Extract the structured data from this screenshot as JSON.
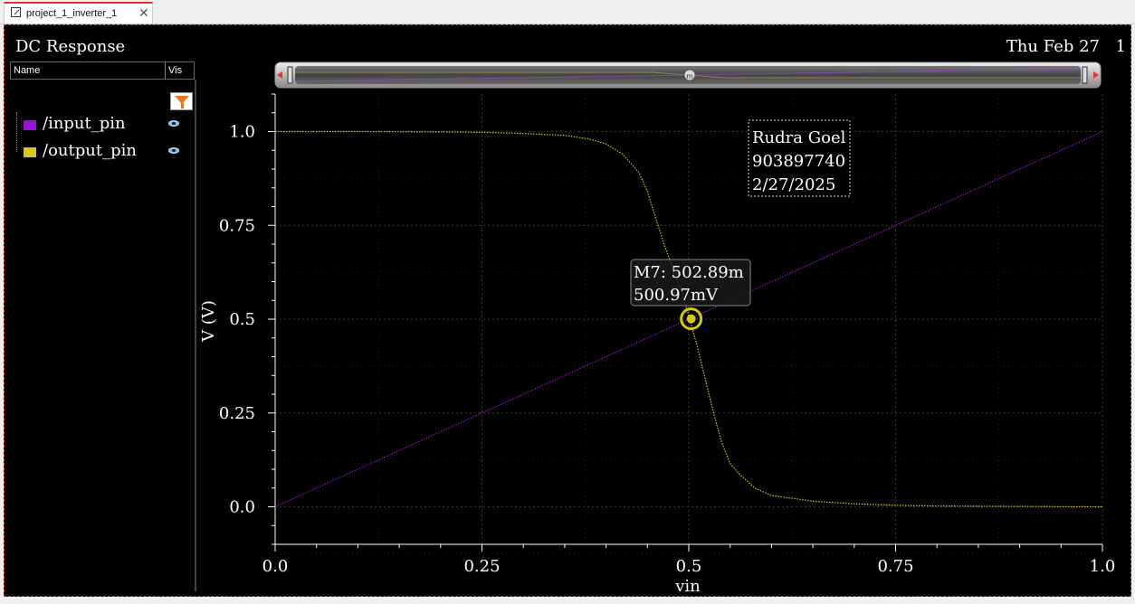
{
  "tab": {
    "title": "project_1_inverter_1",
    "close": "✕"
  },
  "panel": {
    "title": "DC Response",
    "date": "Thu Feb 27",
    "date_extra": "1"
  },
  "legend": {
    "col_name": "Name",
    "col_vis": "Vis",
    "items": [
      {
        "label": "/input_pin",
        "color": "#9b10d8"
      },
      {
        "label": "/output_pin",
        "color": "#d6c81c"
      }
    ]
  },
  "annotation": {
    "lines": [
      "Rudra Goel",
      "903897740",
      "2/27/2025"
    ]
  },
  "marker": {
    "line1": "M7: 502.89m",
    "line2": "500.97mV",
    "x": 0.50289,
    "y": 0.50097
  },
  "chart_data": {
    "type": "line",
    "xlabel": "vin",
    "ylabel": "V (V)",
    "xlim": [
      0.0,
      1.0
    ],
    "ylim": [
      -0.1,
      1.1
    ],
    "xticks": [
      "0.0",
      "0.25",
      "0.5",
      "0.75",
      "1.0"
    ],
    "yticks": [
      "0.0",
      "0.25",
      "0.5",
      "0.75",
      "1.0"
    ],
    "grid": true,
    "series": [
      {
        "name": "/input_pin",
        "color": "#9b10d8",
        "x": [
          0.0,
          1.0
        ],
        "y": [
          0.0,
          1.0
        ]
      },
      {
        "name": "/output_pin",
        "color": "#d6c81c",
        "x": [
          0.0,
          0.1,
          0.2,
          0.25,
          0.3,
          0.35,
          0.38,
          0.4,
          0.42,
          0.44,
          0.45,
          0.46,
          0.47,
          0.48,
          0.49,
          0.5,
          0.51,
          0.52,
          0.53,
          0.54,
          0.55,
          0.56,
          0.58,
          0.6,
          0.65,
          0.7,
          0.75,
          0.8,
          0.9,
          1.0
        ],
        "y": [
          1.0,
          1.0,
          0.999,
          0.998,
          0.995,
          0.99,
          0.98,
          0.967,
          0.94,
          0.89,
          0.84,
          0.77,
          0.7,
          0.64,
          0.58,
          0.51,
          0.43,
          0.34,
          0.25,
          0.17,
          0.115,
          0.09,
          0.05,
          0.03,
          0.015,
          0.008,
          0.004,
          0.002,
          0.001,
          0.0
        ]
      }
    ]
  }
}
